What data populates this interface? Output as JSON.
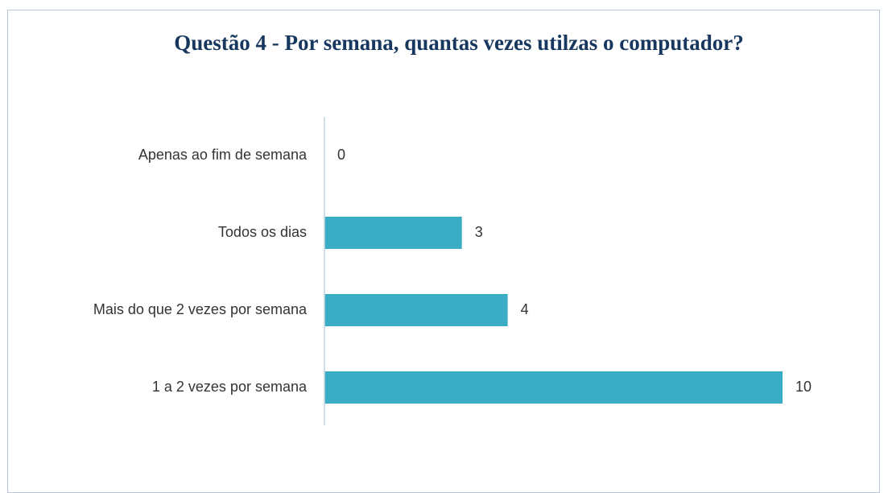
{
  "chart_data": {
    "type": "bar",
    "orientation": "horizontal",
    "title": "Questão 4 - Por semana, quantas vezes utilzas o computador?",
    "categories": [
      "Apenas ao fim de semana",
      "Todos os dias",
      "Mais do que 2 vezes por semana",
      "1  a 2 vezes por semana"
    ],
    "values": [
      0,
      3,
      4,
      10
    ],
    "color": "#3bacc6",
    "xlim": [
      0,
      10
    ]
  }
}
